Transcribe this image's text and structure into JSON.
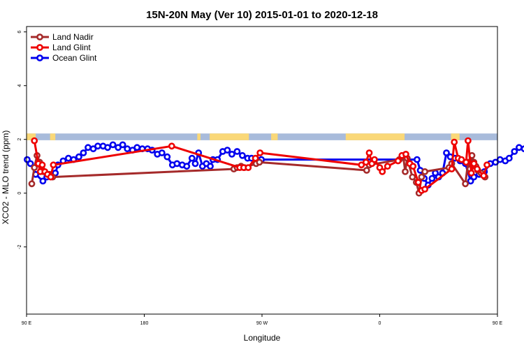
{
  "chart_data": {
    "type": "line",
    "title": "15N-20N May (Ver 10)   2015-01-01 to 2020-12-18",
    "xlabel": "Longitude",
    "ylabel": "XCO2 - MLO trend (ppm)",
    "xlim": [
      90,
      450
    ],
    "ylim": [
      -4.5,
      6.2
    ],
    "x_ticks": [
      {
        "value": 90,
        "label": "90 E"
      },
      {
        "value": 180,
        "label": "180"
      },
      {
        "value": 270,
        "label": "90 W"
      },
      {
        "value": 360,
        "label": "0"
      },
      {
        "value": 450,
        "label": "90 E"
      },
      {
        "value": 540,
        "label": "180"
      }
    ],
    "y_ticks": [
      -2,
      0,
      2,
      4,
      6
    ],
    "legend": {
      "position": "top-left",
      "entries": [
        "Land Nadir",
        "Land Glint",
        "Ocean Glint"
      ]
    },
    "land_strip": {
      "y_range": [
        1.97,
        2.22
      ],
      "ocean_color": "#a8bbdb",
      "land_color": "#fad878",
      "land_segments": [
        [
          90.0,
          97.0
        ],
        [
          108.0,
          112.0
        ],
        [
          220.5,
          223.0
        ],
        [
          230.0,
          260.0
        ],
        [
          277.0,
          282.0
        ],
        [
          334.0,
          379.0
        ],
        [
          414.5,
          421.0
        ],
        [
          464.0,
          470.0
        ]
      ]
    },
    "series": [
      {
        "name": "Land Nadir",
        "color": "#a52a2a",
        "points": [
          [
            94,
            0.35
          ],
          [
            96,
            0.95
          ],
          [
            98,
            1.4
          ],
          [
            100,
            1.15
          ],
          [
            101.5,
            0.95
          ],
          [
            103,
            0.8
          ],
          [
            107.5,
            0.7
          ],
          [
            110,
            0.6
          ],
          [
            248.5,
            0.9
          ],
          [
            251,
            0.95
          ],
          [
            254,
            1.0
          ],
          [
            256.5,
            0.95
          ],
          [
            265.5,
            1.1
          ],
          [
            268,
            1.15
          ],
          [
            350,
            0.85
          ],
          [
            352,
            1.05
          ],
          [
            375,
            1.25
          ],
          [
            378,
            1.35
          ],
          [
            379.5,
            0.8
          ],
          [
            381,
            1.3
          ],
          [
            385,
            0.6
          ],
          [
            388,
            0.4
          ],
          [
            390,
            0.0
          ],
          [
            392,
            0.6
          ],
          [
            394.5,
            0.8
          ],
          [
            413,
            0.95
          ],
          [
            415,
            1.1
          ],
          [
            425.5,
            0.35
          ],
          [
            427.5,
            1.15
          ],
          [
            429,
            0.9
          ],
          [
            430.5,
            1.4
          ],
          [
            432,
            1.15
          ],
          [
            433.5,
            1.0
          ],
          [
            435,
            0.85
          ],
          [
            437.5,
            0.75
          ],
          [
            440.5,
            0.6
          ]
        ]
      },
      {
        "name": "Land Glint",
        "color": "#ee0000",
        "points": [
          [
            96,
            1.95
          ],
          [
            99,
            1.1
          ],
          [
            100.5,
            0.8
          ],
          [
            102,
            1.05
          ],
          [
            104,
            0.8
          ],
          [
            106,
            0.7
          ],
          [
            108.5,
            0.6
          ],
          [
            110.5,
            1.05
          ],
          [
            201,
            1.75
          ],
          [
            253,
            0.95
          ],
          [
            256,
            0.95
          ],
          [
            259.5,
            0.95
          ],
          [
            265,
            1.3
          ],
          [
            268.5,
            1.5
          ],
          [
            346,
            1.05
          ],
          [
            349.5,
            1.15
          ],
          [
            352,
            1.5
          ],
          [
            354,
            1.1
          ],
          [
            356,
            1.25
          ],
          [
            360,
            0.95
          ],
          [
            362,
            0.8
          ],
          [
            366,
            1.0
          ],
          [
            374,
            1.2
          ],
          [
            377,
            1.4
          ],
          [
            380,
            1.45
          ],
          [
            383,
            1.1
          ],
          [
            385.5,
            1.0
          ],
          [
            389.5,
            0.4
          ],
          [
            392,
            0.1
          ],
          [
            394.5,
            0.15
          ],
          [
            415,
            0.9
          ],
          [
            417,
            1.9
          ],
          [
            420,
            1.3
          ],
          [
            422.5,
            1.25
          ],
          [
            426,
            1.15
          ],
          [
            427.5,
            1.95
          ],
          [
            430,
            0.75
          ],
          [
            432,
            1.1
          ],
          [
            434.5,
            0.9
          ],
          [
            439.5,
            0.65
          ],
          [
            442,
            1.05
          ]
        ]
      },
      {
        "name": "Ocean Glint",
        "color": "#0000ee",
        "points": [
          [
            90.5,
            1.25
          ],
          [
            93,
            1.1
          ],
          [
            97,
            0.7
          ],
          [
            102.5,
            0.45
          ],
          [
            105.5,
            0.6
          ],
          [
            108.5,
            0.65
          ],
          [
            112,
            0.75
          ],
          [
            114,
            1.05
          ],
          [
            118,
            1.2
          ],
          [
            122,
            1.3
          ],
          [
            126,
            1.25
          ],
          [
            130,
            1.35
          ],
          [
            133.5,
            1.5
          ],
          [
            137,
            1.7
          ],
          [
            141,
            1.65
          ],
          [
            144.5,
            1.75
          ],
          [
            148.5,
            1.75
          ],
          [
            152,
            1.7
          ],
          [
            156,
            1.8
          ],
          [
            160,
            1.7
          ],
          [
            163.5,
            1.8
          ],
          [
            167,
            1.65
          ],
          [
            171,
            1.6
          ],
          [
            174.5,
            1.7
          ],
          [
            178.5,
            1.65
          ],
          [
            182.5,
            1.65
          ],
          [
            186,
            1.6
          ],
          [
            190,
            1.45
          ],
          [
            193.5,
            1.5
          ],
          [
            197.5,
            1.35
          ],
          [
            201.5,
            1.05
          ],
          [
            205,
            1.1
          ],
          [
            209,
            1.05
          ],
          [
            212.5,
            1.0
          ],
          [
            216.5,
            1.3
          ],
          [
            219,
            1.1
          ],
          [
            221.5,
            1.5
          ],
          [
            224.5,
            1.0
          ],
          [
            227.5,
            1.1
          ],
          [
            230.5,
            1.0
          ],
          [
            232.5,
            1.25
          ],
          [
            236,
            1.25
          ],
          [
            240,
            1.55
          ],
          [
            243.5,
            1.6
          ],
          [
            247,
            1.45
          ],
          [
            251,
            1.55
          ],
          [
            255,
            1.4
          ],
          [
            259,
            1.3
          ],
          [
            262,
            1.3
          ],
          [
            266,
            1.25
          ],
          [
            269.5,
            1.25
          ],
          [
            388.5,
            1.25
          ],
          [
            391,
            0.85
          ],
          [
            394,
            0.55
          ],
          [
            397,
            0.3
          ],
          [
            400,
            0.55
          ],
          [
            402.5,
            0.75
          ],
          [
            405,
            0.6
          ],
          [
            408,
            0.75
          ],
          [
            411,
            1.5
          ],
          [
            414,
            1.35
          ],
          [
            417.5,
            1.3
          ],
          [
            421.5,
            1.2
          ],
          [
            425.5,
            1.1
          ],
          [
            429.5,
            0.45
          ],
          [
            432,
            0.6
          ],
          [
            436,
            0.7
          ],
          [
            440,
            0.8
          ],
          [
            444.5,
            1.1
          ],
          [
            448.5,
            1.15
          ],
          [
            452,
            1.25
          ],
          [
            456,
            1.2
          ],
          [
            459,
            1.3
          ],
          [
            463,
            1.55
          ],
          [
            466.5,
            1.7
          ],
          [
            470.5,
            1.65
          ],
          [
            474,
            1.8
          ],
          [
            477.5,
            1.8
          ],
          [
            481,
            1.75
          ]
        ]
      }
    ]
  }
}
